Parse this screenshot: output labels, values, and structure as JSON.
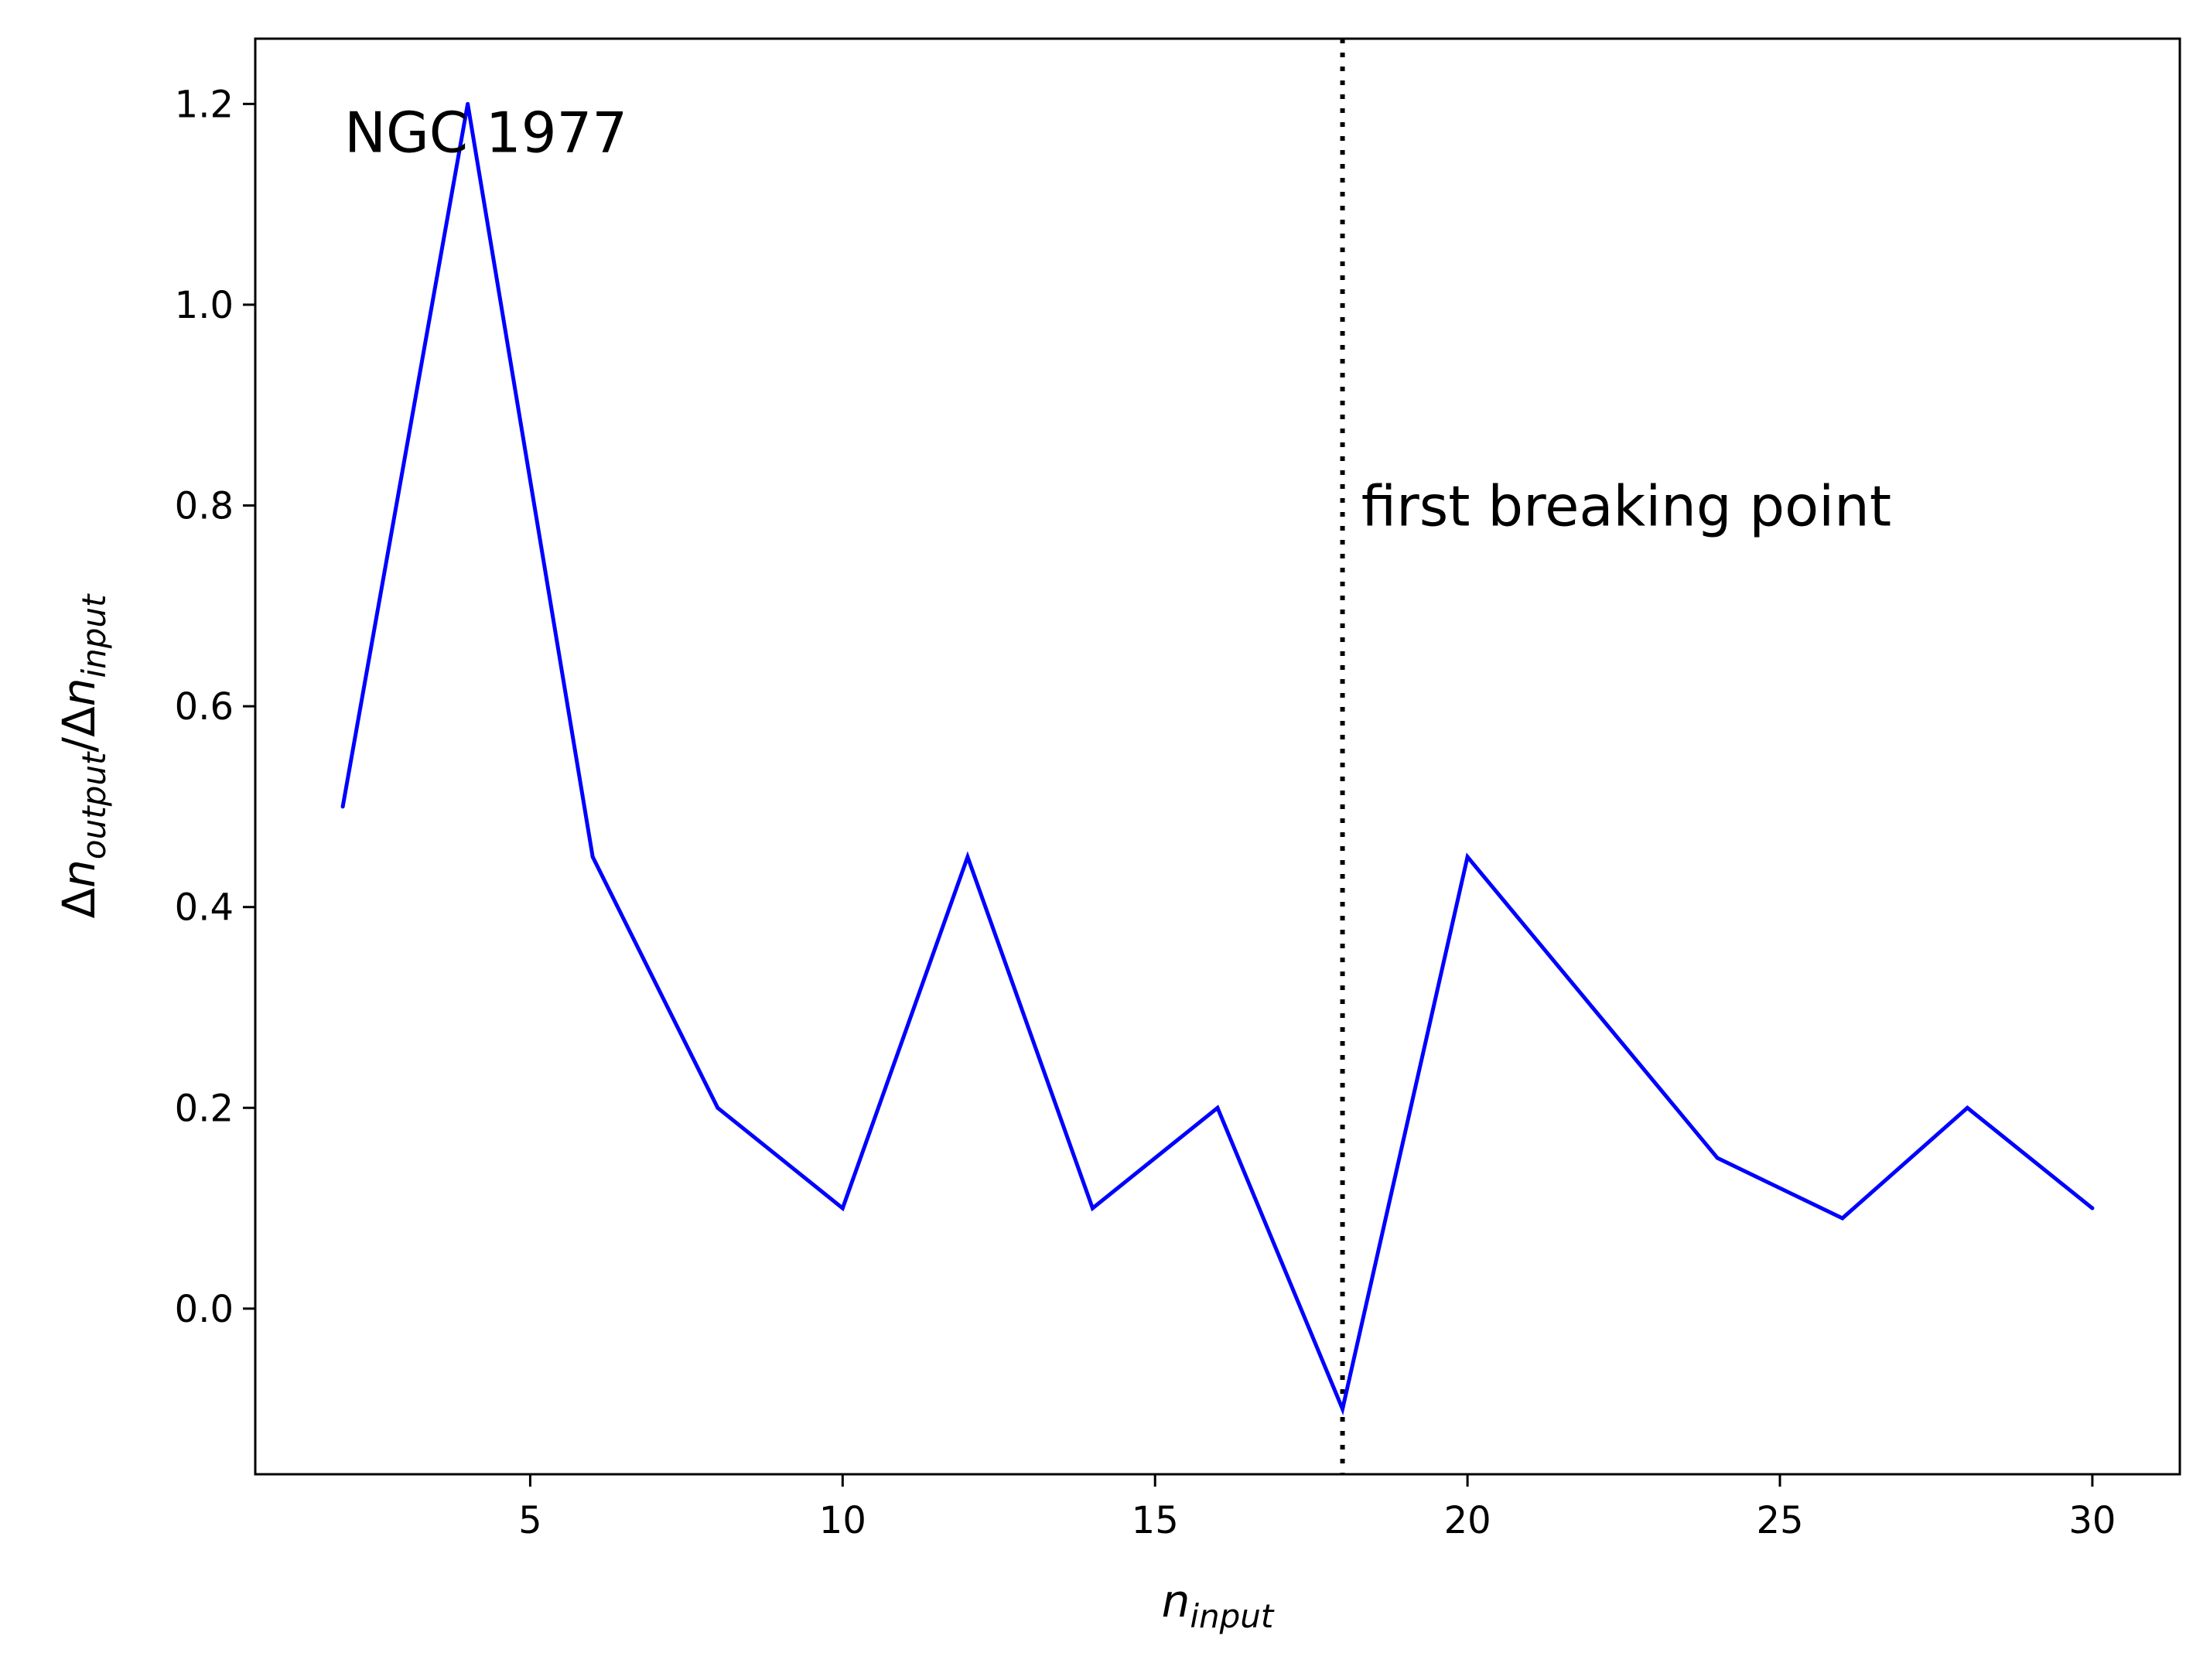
{
  "chart_data": {
    "type": "line",
    "x": [
      2,
      4,
      6,
      8,
      10,
      12,
      14,
      16,
      18,
      20,
      22,
      24,
      26,
      28,
      30
    ],
    "series": [
      {
        "color": "#0000ff",
        "values": [
          0.5,
          1.2,
          0.45,
          0.2,
          0.1,
          0.45,
          0.1,
          0.2,
          -0.1,
          0.45,
          0.3,
          0.15,
          0.09,
          0.2,
          0.1
        ]
      }
    ],
    "xlim": [
      0.6,
      31.4
    ],
    "ylim": [
      -0.165,
      1.265
    ],
    "xticks": [
      5,
      10,
      15,
      20,
      25,
      30
    ],
    "yticks": [
      0.0,
      0.2,
      0.4,
      0.6,
      0.8,
      1.0,
      1.2
    ],
    "xtick_labels": [
      "5",
      "10",
      "15",
      "20",
      "25",
      "30"
    ],
    "ytick_labels": [
      "0.0",
      "0.2",
      "0.4",
      "0.6",
      "0.8",
      "1.0",
      "1.2"
    ],
    "xlabel": {
      "base": "n",
      "sub": "input"
    },
    "ylabel": {
      "delta": "Δ",
      "base": "n",
      "sub_num": "output",
      "slash": "/",
      "sub_den": "input"
    },
    "vline": {
      "x": 18,
      "style": "dotted",
      "color": "#000000"
    },
    "annotations": {
      "object": {
        "text": "NGC 1977",
        "x": 2,
        "y": 1.2
      },
      "breaking_point": {
        "text": "first breaking point",
        "x": 18.3,
        "y": 0.8
      }
    },
    "grid": false,
    "legend": "none"
  }
}
